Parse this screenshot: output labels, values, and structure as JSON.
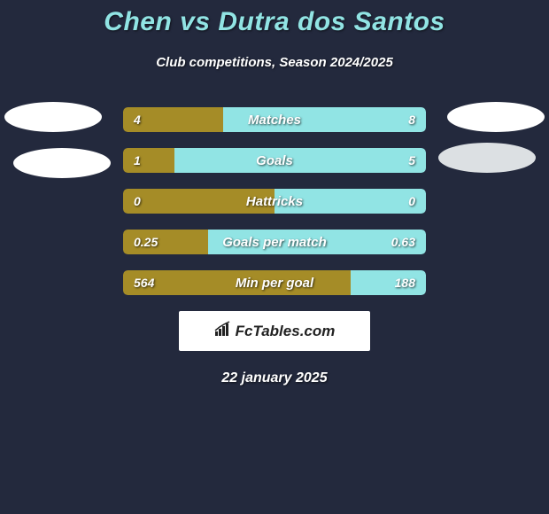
{
  "title": "Chen vs Dutra dos Santos",
  "subtitle": "Club competitions, Season 2024/2025",
  "date": "22 january 2025",
  "brand": "FcTables.com",
  "colors": {
    "background": "#23293d",
    "title": "#91e4e4",
    "left_bar": "#a58c27",
    "right_bar": "#91e4e4",
    "text": "#ffffff"
  },
  "bars": [
    {
      "label": "Matches",
      "left_val": "4",
      "right_val": "8",
      "left_pct": 33
    },
    {
      "label": "Goals",
      "left_val": "1",
      "right_val": "5",
      "left_pct": 17
    },
    {
      "label": "Hattricks",
      "left_val": "0",
      "right_val": "0",
      "left_pct": 50
    },
    {
      "label": "Goals per match",
      "left_val": "0.25",
      "right_val": "0.63",
      "left_pct": 28
    },
    {
      "label": "Min per goal",
      "left_val": "564",
      "right_val": "188",
      "left_pct": 75
    }
  ]
}
